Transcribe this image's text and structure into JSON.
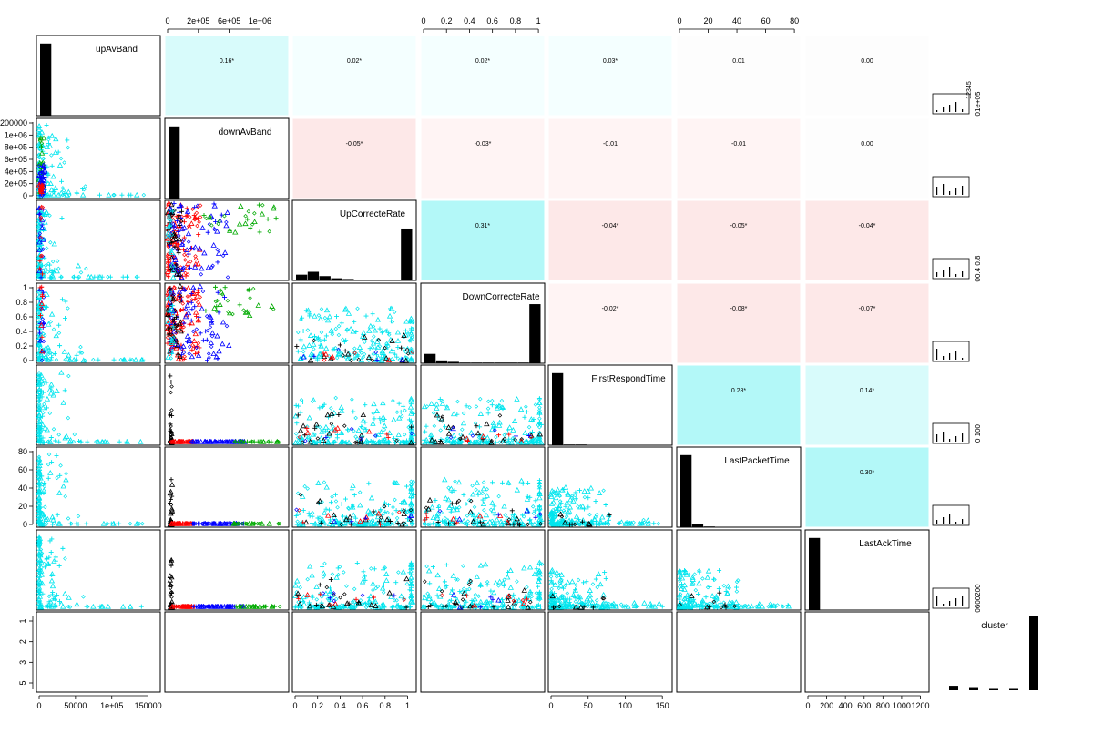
{
  "chart_data": {
    "type": "scatter",
    "variables": [
      "upAvBand",
      "downAvBand",
      "UpCorrecteRate",
      "DownCorrecteRate",
      "FirstRespondTime",
      "LastPacketTime",
      "LastAckTime",
      "cluster"
    ],
    "top_axis_labels": [
      [
        "0",
        "2e+05",
        "6e+05",
        "1e+06"
      ],
      [
        "0",
        "0.2",
        "0.4",
        "0.6",
        "0.8",
        "1"
      ],
      [
        "0",
        "20",
        "40",
        "60",
        "80"
      ]
    ],
    "bottom_axis_labels": [
      [
        "0",
        "50000",
        "1e+05",
        "150000"
      ],
      [
        "0",
        "0.2",
        "0.4",
        "0.6",
        "0.8",
        "1"
      ],
      [
        "0",
        "50",
        "100",
        "150"
      ],
      [
        "0",
        "200",
        "400",
        "600",
        "800",
        "1000",
        "1200"
      ]
    ],
    "left_axis_labels": [
      [
        "0",
        "2e+05",
        "4e+05",
        "6e+05",
        "8e+05",
        "1e+06",
        "200000"
      ],
      [
        "0",
        "0.2",
        "0.4",
        "0.6",
        "0.8",
        "1"
      ],
      [
        "0",
        "20",
        "40",
        "60",
        "80"
      ],
      [
        "1",
        "2",
        "3",
        "5"
      ]
    ],
    "right_axis_labels": [
      "01e+05",
      "",
      "00.4 0.8",
      "",
      "0 100",
      "",
      "0600200",
      ""
    ],
    "right_top_mini_label": "12345",
    "correlations": [
      {
        "row": 0,
        "col": 1,
        "value": "0.16*"
      },
      {
        "row": 0,
        "col": 2,
        "value": "0.02*"
      },
      {
        "row": 0,
        "col": 3,
        "value": "0.02*"
      },
      {
        "row": 0,
        "col": 4,
        "value": "0.03*"
      },
      {
        "row": 0,
        "col": 5,
        "value": "0.01"
      },
      {
        "row": 0,
        "col": 6,
        "value": "0.00"
      },
      {
        "row": 1,
        "col": 2,
        "value": "-0.05*"
      },
      {
        "row": 1,
        "col": 3,
        "value": "-0.03*"
      },
      {
        "row": 1,
        "col": 4,
        "value": "-0.01"
      },
      {
        "row": 1,
        "col": 5,
        "value": "-0.01"
      },
      {
        "row": 1,
        "col": 6,
        "value": "0.00"
      },
      {
        "row": 2,
        "col": 3,
        "value": "0.31*"
      },
      {
        "row": 2,
        "col": 4,
        "value": "-0.04*"
      },
      {
        "row": 2,
        "col": 5,
        "value": "-0.05*"
      },
      {
        "row": 2,
        "col": 6,
        "value": "-0.04*"
      },
      {
        "row": 3,
        "col": 4,
        "value": "-0.02*"
      },
      {
        "row": 3,
        "col": 5,
        "value": "-0.08*"
      },
      {
        "row": 3,
        "col": 6,
        "value": "-0.07*"
      },
      {
        "row": 4,
        "col": 5,
        "value": "0.28*"
      },
      {
        "row": 4,
        "col": 6,
        "value": "0.14*"
      },
      {
        "row": 5,
        "col": 6,
        "value": "0.30*"
      }
    ],
    "correlation_colors": {
      "positive_strong": "#b3f8f8",
      "positive_mid": "#d8fbfb",
      "positive_weak": "#f4ffff",
      "negative_mid": "#fde8e8",
      "negative_weak": "#fff4f4",
      "neutral": "#fdfdfd"
    },
    "diagonal_histograms": [
      [
        1.0,
        0,
        0,
        0,
        0,
        0,
        0,
        0,
        0,
        0
      ],
      [
        1.0,
        0,
        0,
        0,
        0,
        0,
        0,
        0,
        0,
        0
      ],
      [
        0.08,
        0.12,
        0.06,
        0.03,
        0.02,
        0.01,
        0.01,
        0.01,
        0.01,
        0.72
      ],
      [
        0.13,
        0.04,
        0.02,
        0.01,
        0.01,
        0.01,
        0.01,
        0.01,
        0.01,
        0.82
      ],
      [
        1.0,
        0.01,
        0.01,
        0,
        0,
        0,
        0,
        0,
        0,
        0
      ],
      [
        1.0,
        0.04,
        0.01,
        0,
        0,
        0,
        0,
        0,
        0,
        0
      ],
      [
        1.0,
        0,
        0,
        0,
        0,
        0,
        0,
        0,
        0,
        0
      ],
      [
        0.06,
        0.03,
        0.01,
        0.01,
        1.0
      ]
    ],
    "cluster_colors": [
      "#000000",
      "#ff0000",
      "#00aa00",
      "#0000ff",
      "#00e5ee"
    ],
    "grid": false
  }
}
